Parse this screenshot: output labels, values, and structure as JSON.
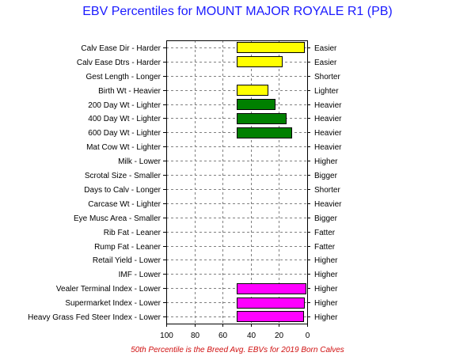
{
  "chart_data": {
    "type": "bar",
    "orientation": "horizontal",
    "title": "EBV Percentiles for MOUNT MAJOR ROYALE R1 (PB)",
    "footnote": "50th Percentile is the Breed Avg. EBVs for 2019 Born Calves",
    "xlim": [
      100,
      0
    ],
    "x_ticks": [
      "100",
      "80",
      "60",
      "40",
      "20",
      "0"
    ],
    "baseline": 50,
    "grid": true,
    "traits": [
      {
        "left_label": "Calv Ease Dir - Harder",
        "right_label": "Easier",
        "value": 2,
        "color": "#ffff00"
      },
      {
        "left_label": "Calv Ease Dtrs - Harder",
        "right_label": "Easier",
        "value": 18,
        "color": "#ffff00"
      },
      {
        "left_label": "Gest Length - Longer",
        "right_label": "Shorter",
        "value": null,
        "color": ""
      },
      {
        "left_label": "Birth Wt - Heavier",
        "right_label": "Lighter",
        "value": 28,
        "color": "#ffff00"
      },
      {
        "left_label": "200 Day Wt - Lighter",
        "right_label": "Heavier",
        "value": 23,
        "color": "#008000"
      },
      {
        "left_label": "400 Day Wt - Lighter",
        "right_label": "Heavier",
        "value": 15,
        "color": "#008000"
      },
      {
        "left_label": "600 Day Wt - Lighter",
        "right_label": "Heavier",
        "value": 11,
        "color": "#008000"
      },
      {
        "left_label": "Mat Cow Wt - Lighter",
        "right_label": "Heavier",
        "value": null,
        "color": ""
      },
      {
        "left_label": "Milk - Lower",
        "right_label": "Higher",
        "value": null,
        "color": ""
      },
      {
        "left_label": "Scrotal Size - Smaller",
        "right_label": "Bigger",
        "value": null,
        "color": ""
      },
      {
        "left_label": "Days to Calv - Longer",
        "right_label": "Shorter",
        "value": null,
        "color": ""
      },
      {
        "left_label": "Carcase Wt - Lighter",
        "right_label": "Heavier",
        "value": null,
        "color": ""
      },
      {
        "left_label": "Eye Musc Area - Smaller",
        "right_label": "Bigger",
        "value": null,
        "color": ""
      },
      {
        "left_label": "Rib Fat - Leaner",
        "right_label": "Fatter",
        "value": null,
        "color": ""
      },
      {
        "left_label": "Rump Fat - Leaner",
        "right_label": "Fatter",
        "value": null,
        "color": ""
      },
      {
        "left_label": "Retail Yield - Lower",
        "right_label": "Higher",
        "value": null,
        "color": ""
      },
      {
        "left_label": "IMF - Lower",
        "right_label": "Higher",
        "value": null,
        "color": ""
      },
      {
        "left_label": "Vealer Terminal Index - Lower",
        "right_label": "Higher",
        "value": 1,
        "color": "#ff00ff"
      },
      {
        "left_label": "Supermarket Index - Lower",
        "right_label": "Higher",
        "value": 2,
        "color": "#ff00ff"
      },
      {
        "left_label": "Heavy Grass Fed Steer Index - Lower",
        "right_label": "Higher",
        "value": 3,
        "color": "#ff00ff"
      }
    ]
  }
}
